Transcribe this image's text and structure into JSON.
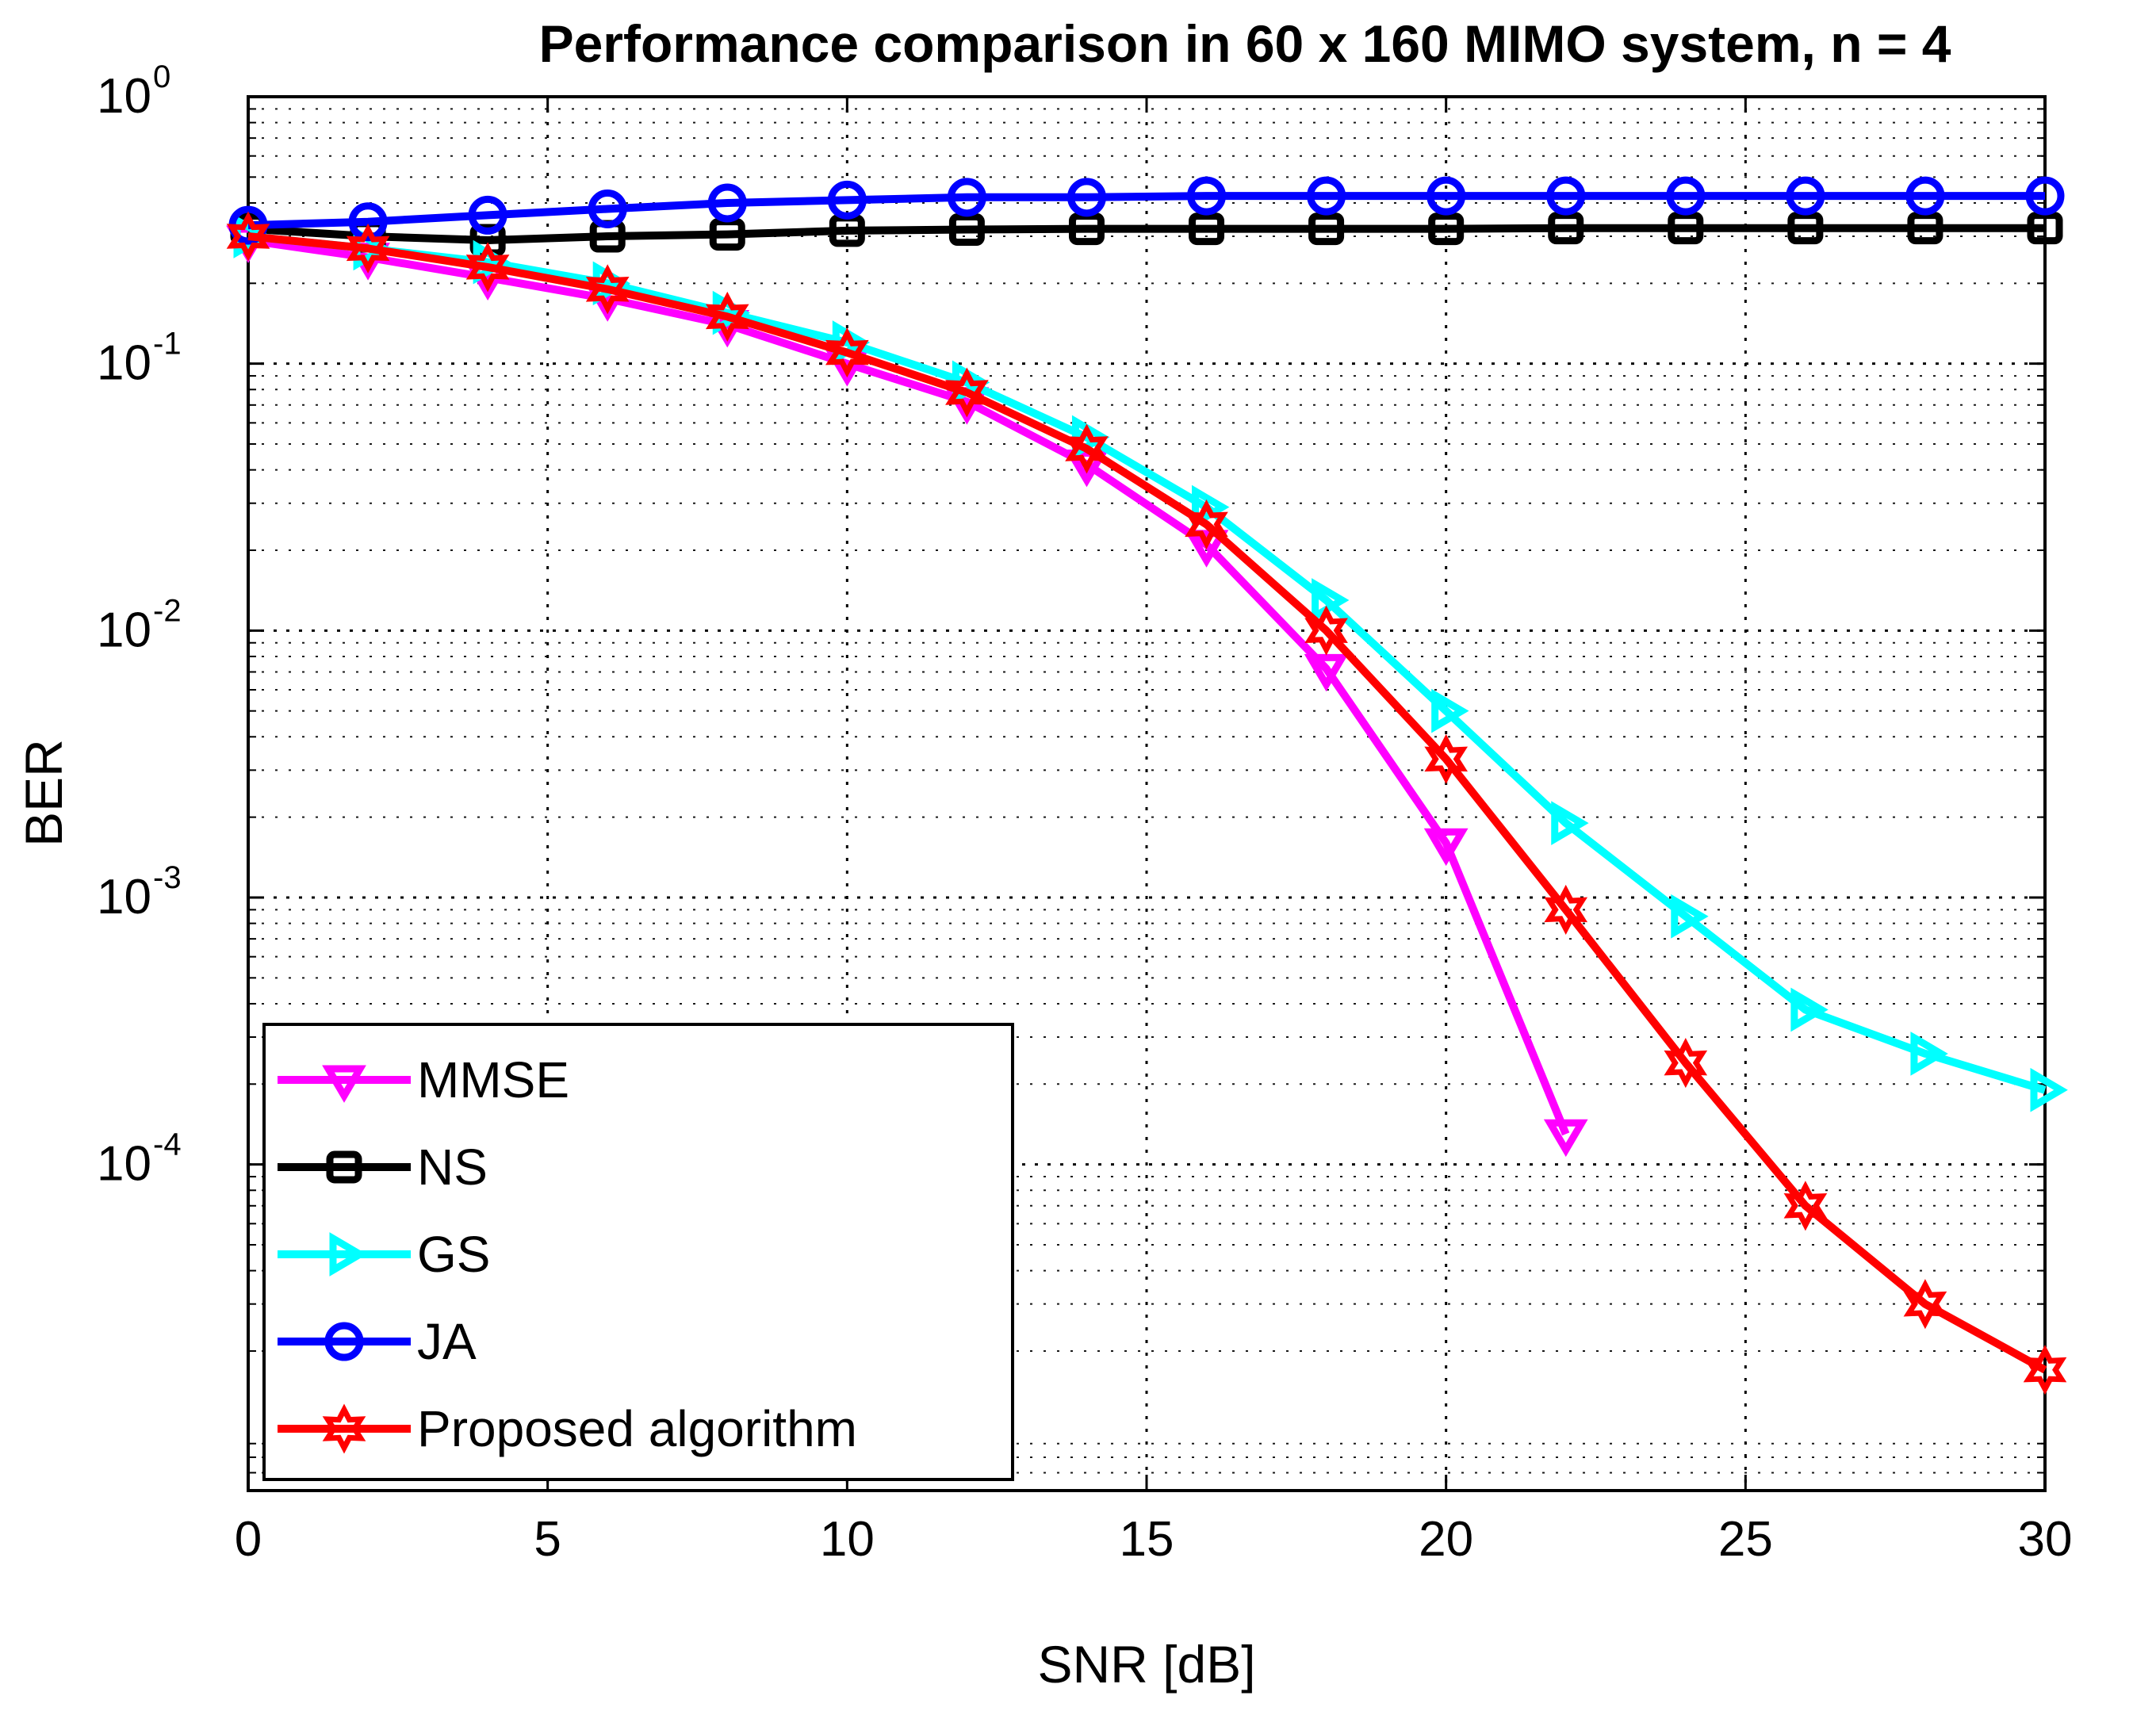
{
  "chart_data": {
    "type": "line",
    "title": "Performance comparison in 60 x 160 MIMO system, n = 4",
    "xlabel": "SNR [dB]",
    "ylabel": "BER",
    "xlim": [
      0,
      30
    ],
    "ylim": [
      6e-06,
      1
    ],
    "yscale": "log",
    "grid": true,
    "x_ticks": [
      "0",
      "5",
      "10",
      "15",
      "20",
      "25",
      "30"
    ],
    "y_ticks": [
      {
        "base": "10",
        "exp": "0",
        "value": 1
      },
      {
        "base": "10",
        "exp": "-1",
        "value": 0.1
      },
      {
        "base": "10",
        "exp": "-2",
        "value": 0.01
      },
      {
        "base": "10",
        "exp": "-3",
        "value": 0.001
      },
      {
        "base": "10",
        "exp": "-4",
        "value": 0.0001
      }
    ],
    "legend_position": "bottom-left",
    "series": [
      {
        "name": "MMSE",
        "color": "#ff00ff",
        "marker": "triangle-down",
        "x": [
          0,
          2,
          4,
          6,
          8,
          10,
          12,
          14,
          16,
          18,
          20,
          22
        ],
        "y": [
          0.29,
          0.25,
          0.21,
          0.175,
          0.14,
          0.1,
          0.072,
          0.042,
          0.021,
          0.0072,
          0.0016,
          0.00013
        ]
      },
      {
        "name": "NS",
        "color": "#000000",
        "marker": "square",
        "x": [
          0,
          2,
          4,
          6,
          8,
          10,
          12,
          14,
          16,
          18,
          20,
          22,
          24,
          26,
          28,
          30
        ],
        "y": [
          0.32,
          0.3,
          0.29,
          0.3,
          0.305,
          0.315,
          0.318,
          0.32,
          0.32,
          0.32,
          0.32,
          0.322,
          0.322,
          0.322,
          0.322,
          0.322
        ]
      },
      {
        "name": "GS",
        "color": "#00ffff",
        "marker": "triangle-right",
        "x": [
          0,
          2,
          4,
          6,
          8,
          10,
          12,
          14,
          16,
          18,
          20,
          22,
          24,
          26,
          28,
          30
        ],
        "y": [
          0.3,
          0.27,
          0.24,
          0.2,
          0.155,
          0.12,
          0.085,
          0.053,
          0.029,
          0.013,
          0.005,
          0.0019,
          0.00085,
          0.00038,
          0.00026,
          0.00019
        ]
      },
      {
        "name": "JA",
        "color": "#0000ff",
        "marker": "circle",
        "x": [
          0,
          2,
          4,
          6,
          8,
          10,
          12,
          14,
          16,
          18,
          20,
          22,
          24,
          26,
          28,
          30
        ],
        "y": [
          0.33,
          0.34,
          0.36,
          0.38,
          0.4,
          0.41,
          0.42,
          0.42,
          0.425,
          0.425,
          0.425,
          0.425,
          0.425,
          0.425,
          0.425,
          0.425
        ]
      },
      {
        "name": "Proposed algorithm",
        "color": "#ff0000",
        "marker": "hexagram",
        "x": [
          0,
          2,
          4,
          6,
          8,
          10,
          12,
          14,
          16,
          18,
          20,
          22,
          24,
          26,
          28,
          30
        ],
        "y": [
          0.3,
          0.27,
          0.23,
          0.19,
          0.15,
          0.11,
          0.078,
          0.048,
          0.025,
          0.01,
          0.0033,
          0.0009,
          0.00024,
          7e-05,
          3e-05,
          1.7e-05
        ]
      }
    ]
  }
}
